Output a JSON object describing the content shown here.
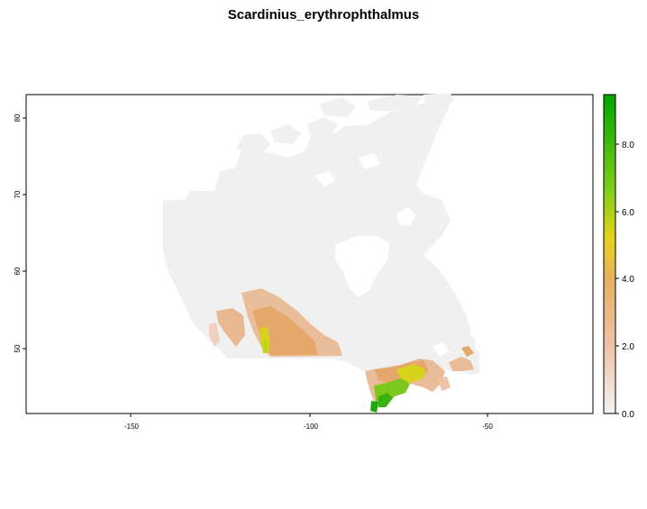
{
  "title": "Scardinius_erythrophthalmus",
  "chart_data": {
    "type": "heatmap",
    "title": "Scardinius_erythrophthalmus",
    "x_ticks": [
      "-150",
      "-100",
      "-50"
    ],
    "y_ticks": [
      "50",
      "60",
      "70",
      "80"
    ],
    "xlim": [
      -179,
      -21
    ],
    "ylim": [
      41.5,
      83.5
    ],
    "legend": {
      "position": "right",
      "ticks": [
        "0.0",
        "2.0",
        "4.0",
        "6.0",
        "8.0"
      ],
      "range": [
        0,
        9.5
      ],
      "colors": [
        "#f2f2f2",
        "#efc3a8",
        "#e8b062",
        "#e6d21a",
        "#7fcf16",
        "#00a600"
      ]
    }
  }
}
